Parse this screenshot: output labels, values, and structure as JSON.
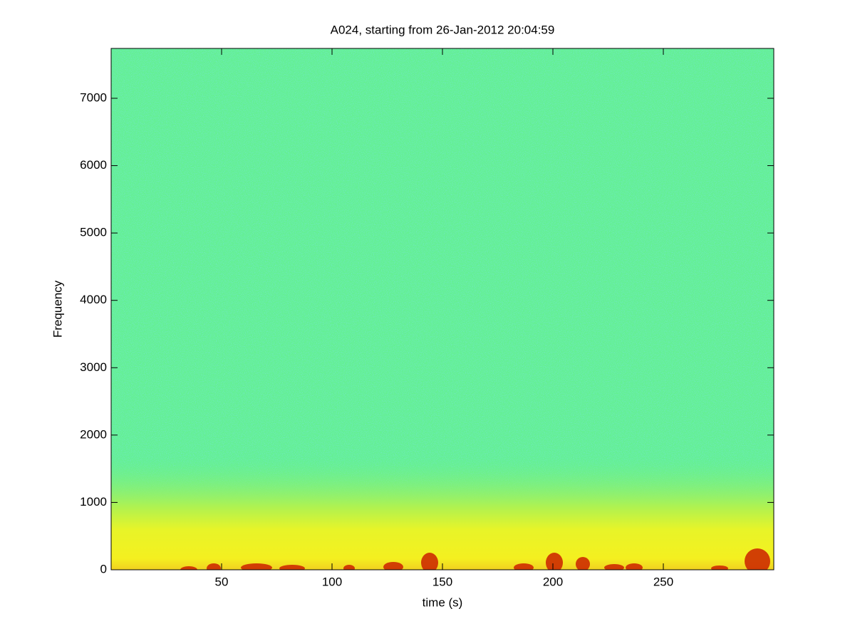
{
  "chart_data": {
    "type": "heatmap",
    "title": "A024, starting from 26-Jan-2012 20:04:59",
    "x_label": "time (s)",
    "y_label": "Frequency",
    "xlim": [
      0,
      300
    ],
    "ylim": [
      0,
      7740
    ],
    "xticks": [
      50,
      100,
      150,
      200,
      250
    ],
    "yticks": [
      0,
      1000,
      2000,
      3000,
      4000,
      5000,
      6000,
      7000
    ]
  }
}
